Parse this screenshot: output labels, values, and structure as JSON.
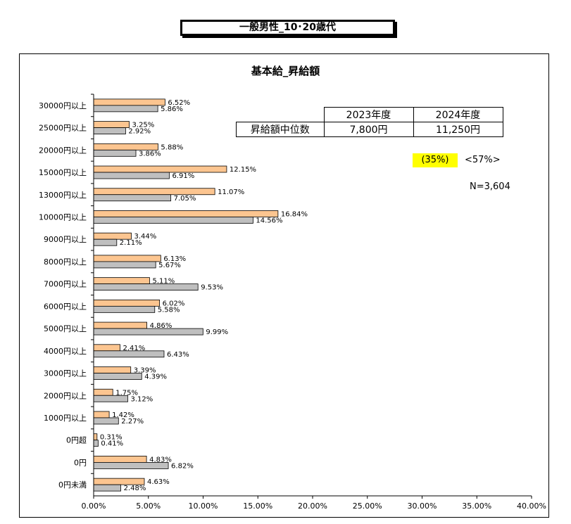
{
  "header": {
    "banner": "一般男性_10･20歳代"
  },
  "table": {
    "col1": "2023年度",
    "col2": "2024年度",
    "row_label": "昇給額中位数",
    "val1": "7,800円",
    "val2": "11,250円"
  },
  "notes": {
    "pct1": "(35%)",
    "pct2": "<57%>",
    "n": "N=3,604"
  },
  "colors": {
    "series2024": "#FCC590",
    "series2023": "#BFBFBF"
  },
  "chart_data": {
    "type": "bar",
    "orientation": "horizontal",
    "title": "基本給_昇給額",
    "categories": [
      "30000円以上",
      "25000円以上",
      "20000円以上",
      "15000円以上",
      "13000円以上",
      "10000円以上",
      "9000円以上",
      "8000円以上",
      "7000円以上",
      "6000円以上",
      "5000円以上",
      "4000円以上",
      "3000円以上",
      "2000円以上",
      "1000円以上",
      "0円超",
      "0円",
      "0円未満"
    ],
    "series": [
      {
        "values": [
          6.52,
          3.25,
          5.88,
          12.15,
          11.07,
          16.84,
          3.44,
          6.13,
          5.11,
          6.02,
          4.86,
          2.41,
          3.39,
          1.75,
          1.42,
          0.31,
          4.83,
          4.63
        ],
        "labels": [
          "6.52%",
          "3.25%",
          "5.88%",
          "12.15%",
          "11.07%",
          "16.84%",
          "3.44%",
          "6.13%",
          "5.11%",
          "6.02%",
          "4.86%",
          "2.41%",
          "3.39%",
          "1.75%",
          "1.42%",
          "0.31%",
          "4.83%",
          "4.63%"
        ]
      },
      {
        "values": [
          5.86,
          2.92,
          3.86,
          6.91,
          7.05,
          14.56,
          2.11,
          5.67,
          9.53,
          5.58,
          9.99,
          6.43,
          4.39,
          3.12,
          2.27,
          0.41,
          6.82,
          2.48
        ],
        "labels": [
          "5.86%",
          "2.92%",
          "3.86%",
          "6.91%",
          "7.05%",
          "14.56%",
          "2.11%",
          "5.67%",
          "9.53%",
          "5.58%",
          "9.99%",
          "6.43%",
          "4.39%",
          "3.12%",
          "2.27%",
          "0.41%",
          "6.82%",
          "2.48%"
        ]
      }
    ],
    "xlim": [
      0,
      40
    ],
    "xticks": [
      "0.00%",
      "5.00%",
      "10.00%",
      "15.00%",
      "20.00%",
      "25.00%",
      "30.00%",
      "35.00%",
      "40.00%"
    ]
  }
}
